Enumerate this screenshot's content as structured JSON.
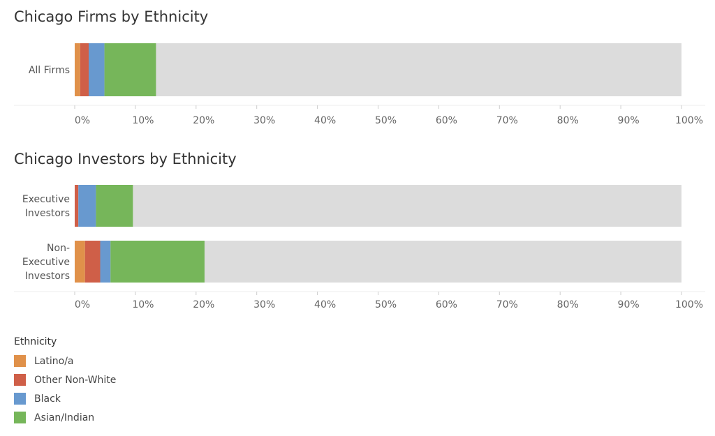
{
  "colors": {
    "latino": "#e0914a",
    "other": "#cf5f48",
    "black": "#6899cf",
    "asian": "#76b65a",
    "rest": "#dcdcdc"
  },
  "legend": {
    "title": "Ethnicity",
    "items": [
      {
        "label": "Latino/a",
        "color_key": "latino"
      },
      {
        "label": "Other Non-White",
        "color_key": "other"
      },
      {
        "label": "Black",
        "color_key": "black"
      },
      {
        "label": "Asian/Indian",
        "color_key": "asian"
      }
    ]
  },
  "chart_data": [
    {
      "type": "bar",
      "orientation": "horizontal",
      "stacked": true,
      "title": "Chicago Firms by Ethnicity",
      "xlim": [
        0,
        100
      ],
      "ticks": [
        "0%",
        "10%",
        "20%",
        "30%",
        "40%",
        "50%",
        "60%",
        "70%",
        "80%",
        "90%",
        "100%"
      ],
      "categories": [
        [
          "All Firms"
        ]
      ],
      "series": [
        {
          "name": "Latino/a",
          "color_key": "latino",
          "values": [
            0.9
          ]
        },
        {
          "name": "Other Non-White",
          "color_key": "other",
          "values": [
            1.4
          ]
        },
        {
          "name": "Black",
          "color_key": "black",
          "values": [
            2.6
          ]
        },
        {
          "name": "Asian/Indian",
          "color_key": "asian",
          "values": [
            8.5
          ]
        },
        {
          "color_key": "rest",
          "values": [
            86.6
          ]
        }
      ]
    },
    {
      "type": "bar",
      "orientation": "horizontal",
      "stacked": true,
      "title": "Chicago Investors by Ethnicity",
      "xlim": [
        0,
        100
      ],
      "ticks": [
        "0%",
        "10%",
        "20%",
        "30%",
        "40%",
        "50%",
        "60%",
        "70%",
        "80%",
        "90%",
        "100%"
      ],
      "categories": [
        [
          "Executive",
          "Investors"
        ],
        [
          "Non-",
          "Executive",
          "Investors"
        ]
      ],
      "series": [
        {
          "name": "Latino/a",
          "color_key": "latino",
          "values": [
            0,
            1.7
          ]
        },
        {
          "name": "Other Non-White",
          "color_key": "other",
          "values": [
            0.6,
            2.5
          ]
        },
        {
          "name": "Black",
          "color_key": "black",
          "values": [
            2.9,
            1.7
          ]
        },
        {
          "name": "Asian/Indian",
          "color_key": "asian",
          "values": [
            6.1,
            15.5
          ]
        },
        {
          "color_key": "rest",
          "values": [
            90.4,
            78.6
          ]
        }
      ]
    }
  ]
}
